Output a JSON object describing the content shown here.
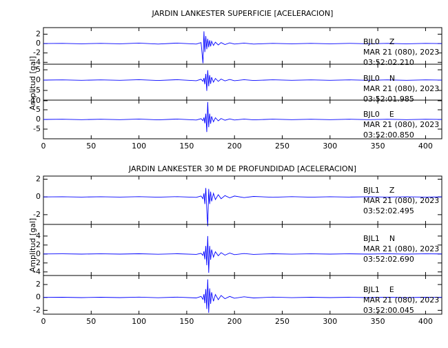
{
  "chart_data": [
    {
      "type": "seismogram",
      "title": "JARDIN LANKESTER SUPERFICIE [ACELERACION]",
      "ylabel": "Amplitud [gal]",
      "xlim": [
        0,
        417
      ],
      "xticks": [
        0,
        50,
        100,
        150,
        200,
        250,
        300,
        350,
        400
      ],
      "color": "#0000ff",
      "x": [
        0,
        20,
        40,
        60,
        80,
        100,
        120,
        140,
        160,
        165,
        167,
        168,
        169,
        170,
        171,
        172,
        173,
        174,
        175,
        176,
        178,
        180,
        183,
        186,
        190,
        195,
        200,
        210,
        220,
        240,
        260,
        280,
        300,
        320,
        340,
        360,
        380,
        400,
        417
      ],
      "subplots": [
        {
          "station": "BJL0    Z",
          "date": "MAR 21 (080), 2023",
          "time": "03:52:02.210",
          "ylim": [
            -4.4,
            3.4
          ],
          "yticks": [
            2,
            0,
            -2,
            -4
          ],
          "values": [
            0,
            0.05,
            -0.05,
            0.05,
            -0.05,
            0.1,
            -0.1,
            0.1,
            -0.1,
            0.2,
            -4.2,
            2.6,
            -1.8,
            1.6,
            -1.2,
            1.0,
            -0.8,
            0.7,
            -0.6,
            0.5,
            -0.4,
            0.3,
            -0.3,
            0.2,
            -0.2,
            0.15,
            -0.1,
            0.1,
            -0.1,
            0.05,
            -0.05,
            0.05,
            -0.05,
            0.05,
            -0.05,
            0.05,
            -0.05,
            0.05,
            0
          ]
        },
        {
          "station": "BJL0    N",
          "date": "MAR 21 (080), 2023",
          "time": "03:52:01.985",
          "ylim": [
            -9.7,
            7.7
          ],
          "yticks": [
            5,
            0,
            -5,
            -10
          ],
          "values": [
            0,
            0.1,
            -0.1,
            0.1,
            -0.1,
            0.2,
            -0.2,
            0.2,
            -0.3,
            0.4,
            -0.6,
            1.0,
            -2.0,
            3.0,
            -5.2,
            4.8,
            -3.0,
            2.4,
            -1.8,
            1.4,
            -1.0,
            0.8,
            -0.6,
            0.5,
            -0.4,
            0.3,
            -0.3,
            0.2,
            -0.2,
            0.15,
            -0.1,
            0.1,
            -0.1,
            0.1,
            -0.1,
            0.1,
            -0.1,
            0.1,
            0
          ]
        },
        {
          "station": "BJL0    E",
          "date": "MAR 21 (080), 2023",
          "time": "03:52:00.850",
          "ylim": [
            -10,
            10
          ],
          "yticks": [
            5,
            0,
            -5
          ],
          "values": [
            0,
            0.1,
            -0.1,
            0.1,
            -0.1,
            0.2,
            -0.2,
            0.2,
            -0.3,
            0.4,
            -0.6,
            1.0,
            -2.0,
            3.0,
            -6.5,
            9.0,
            -4.0,
            3.0,
            -2.2,
            1.6,
            -1.2,
            0.9,
            -0.7,
            0.5,
            -0.4,
            0.3,
            -0.3,
            0.2,
            -0.2,
            0.15,
            -0.1,
            0.1,
            -0.1,
            0.1,
            -0.1,
            0.1,
            -0.1,
            0.1,
            0
          ]
        }
      ]
    },
    {
      "type": "seismogram",
      "title": "JARDIN LANKESTER 30 M DE PROFUNDIDAD [ACELERACION]",
      "ylabel": "Amplitud [gal]",
      "xlim": [
        0,
        417
      ],
      "xticks": [
        0,
        50,
        100,
        150,
        200,
        250,
        300,
        350,
        400
      ],
      "color": "#0000ff",
      "x": [
        0,
        20,
        40,
        60,
        80,
        100,
        120,
        140,
        160,
        165,
        167,
        168,
        169,
        170,
        171,
        172,
        173,
        174,
        175,
        176,
        178,
        180,
        183,
        186,
        190,
        195,
        200,
        210,
        220,
        240,
        260,
        280,
        300,
        320,
        340,
        360,
        380,
        400,
        417
      ],
      "subplots": [
        {
          "station": "BJL1    Z",
          "date": "MAR 21 (080), 2023",
          "time": "03:52:02.495",
          "ylim": [
            -3.1,
            2.35
          ],
          "yticks": [
            2,
            0,
            -2
          ],
          "values": [
            0,
            0.02,
            -0.02,
            0.02,
            -0.02,
            0.03,
            -0.03,
            0.03,
            -0.05,
            0.1,
            -0.2,
            0.4,
            -0.8,
            1.0,
            -1.4,
            -3.3,
            0.9,
            -0.8,
            0.6,
            -0.5,
            0.4,
            -0.3,
            0.25,
            -0.2,
            0.15,
            -0.1,
            0.1,
            -0.08,
            0.05,
            -0.04,
            0.03,
            -0.03,
            0.02,
            -0.02,
            0.02,
            -0.02,
            0.02,
            -0.02,
            0
          ]
        },
        {
          "station": "BJL1    N",
          "date": "MAR 21 (080), 2023",
          "time": "03:52:02.690",
          "ylim": [
            -4.8,
            6.6
          ],
          "yticks": [
            4,
            2,
            0,
            -2,
            -4
          ],
          "values": [
            0,
            0.03,
            -0.03,
            0.03,
            -0.03,
            0.05,
            -0.05,
            0.05,
            -0.08,
            0.15,
            -0.3,
            0.6,
            -1.2,
            1.8,
            -2.5,
            4.0,
            -4.2,
            1.8,
            -1.3,
            1.0,
            -0.7,
            0.5,
            -0.4,
            0.3,
            -0.25,
            0.2,
            -0.15,
            0.1,
            -0.08,
            0.05,
            -0.04,
            0.03,
            -0.03,
            0.03,
            -0.03,
            0.03,
            -0.03,
            0.03,
            0
          ]
        },
        {
          "station": "BJL1    E",
          "date": "MAR 21 (080), 2023",
          "time": "03:52:00.045",
          "ylim": [
            -2.6,
            3.4
          ],
          "yticks": [
            2,
            0,
            -2
          ],
          "values": [
            0,
            0.03,
            -0.03,
            0.03,
            -0.03,
            0.05,
            -0.05,
            0.05,
            -0.08,
            0.15,
            -0.3,
            0.5,
            -0.9,
            1.3,
            -1.8,
            2.8,
            -2.4,
            1.4,
            -1.0,
            0.8,
            -0.6,
            0.45,
            -0.35,
            0.3,
            -0.2,
            0.15,
            -0.12,
            0.1,
            -0.08,
            0.05,
            -0.04,
            0.03,
            -0.03,
            0.03,
            -0.03,
            0.03,
            -0.03,
            0.03,
            0
          ]
        }
      ]
    }
  ]
}
